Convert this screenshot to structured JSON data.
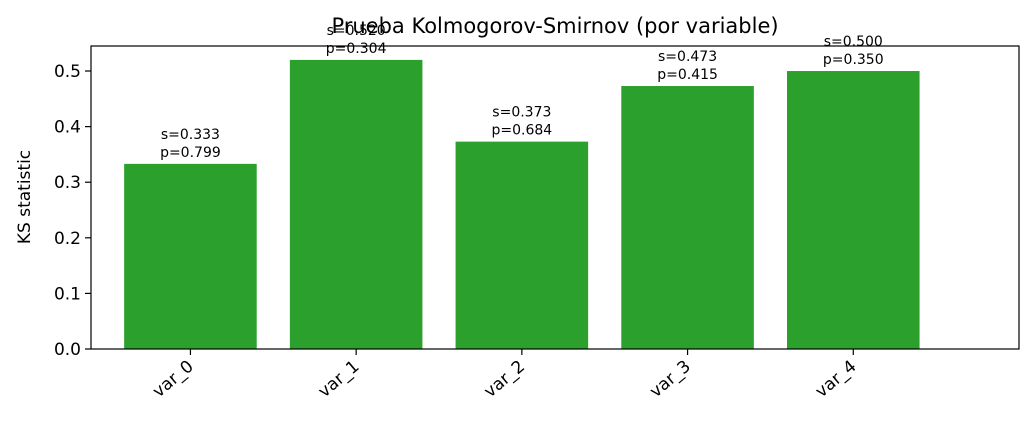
{
  "chart_data": {
    "type": "bar",
    "title": "Prueba Kolmogorov-Smirnov (por variable)",
    "xlabel": "",
    "ylabel": "KS statistic",
    "categories": [
      "var_0",
      "var_1",
      "var_2",
      "var_3",
      "var_4"
    ],
    "values": [
      0.333,
      0.52,
      0.373,
      0.473,
      0.5
    ],
    "annotations": [
      [
        "s=0.333",
        "p=0.799"
      ],
      [
        "s=0.520",
        "p=0.304"
      ],
      [
        "s=0.373",
        "p=0.684"
      ],
      [
        "s=0.473",
        "p=0.415"
      ],
      [
        "s=0.500",
        "p=0.350"
      ]
    ],
    "ylim": [
      0,
      0.545
    ],
    "yticks": [
      "0.0",
      "0.1",
      "0.2",
      "0.3",
      "0.4",
      "0.5"
    ],
    "grid": false,
    "bar_color": "#2ca02c"
  }
}
